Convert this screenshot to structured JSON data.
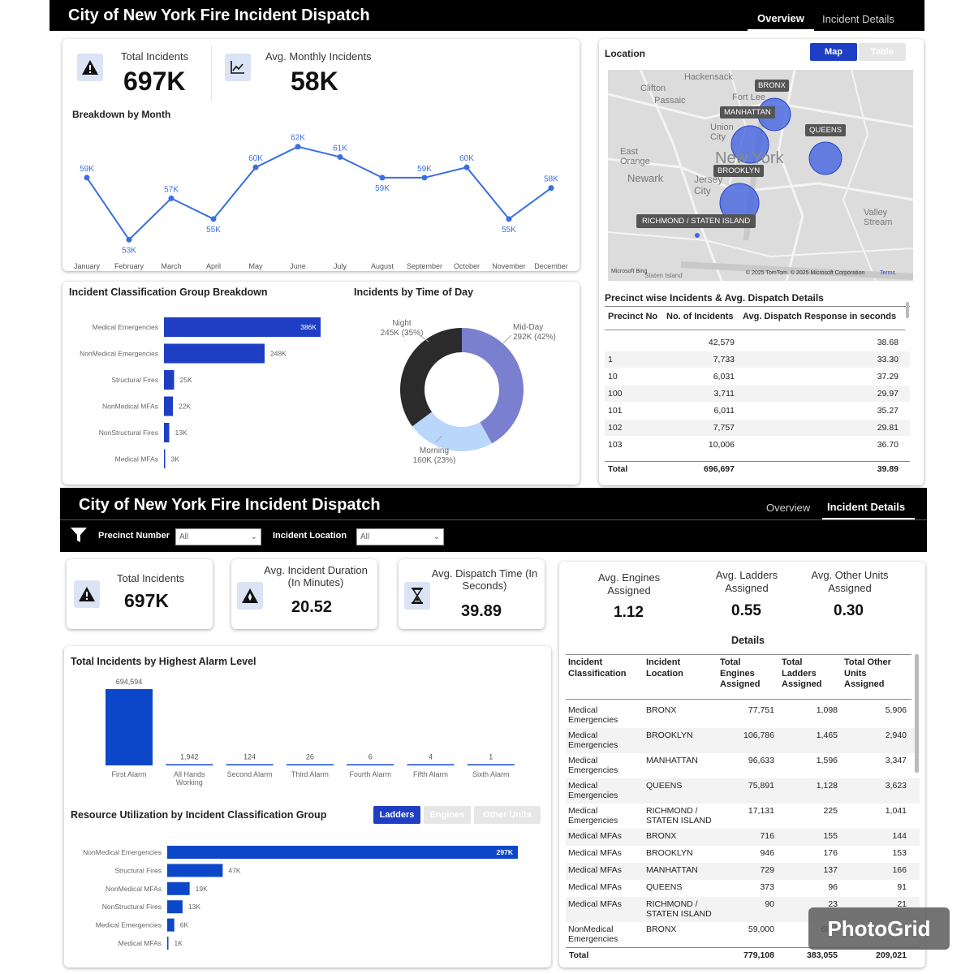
{
  "top": {
    "title": "City of New York Fire Incident Dispatch",
    "tabs": [
      "Overview",
      "Incident Details"
    ],
    "kpis": [
      {
        "label": "Total Incidents",
        "value": "697K",
        "icon": "warning-icon"
      },
      {
        "label": "Avg. Monthly Incidents",
        "value": "58K",
        "icon": "trend-chart-icon"
      }
    ],
    "month_title": "Breakdown by Month",
    "class_title": "Incident Classification Group Breakdown",
    "tod_title": "Incidents by Time of Day",
    "location": {
      "title": "Location",
      "buttons": [
        "Map",
        "Table"
      ],
      "map_labels": [
        "BRONX",
        "MANHATTAN",
        "QUEENS",
        "BROOKLYN",
        "RICHMOND / STATEN ISLAND"
      ],
      "place_names": [
        "Hackensack",
        "Clifton",
        "Passaic",
        "Fort Lee",
        "Union City",
        "East Orange",
        "Newark",
        "New York",
        "Jersey City",
        "Valley Stream",
        "Staten Island"
      ],
      "copyright": "© 2025 TomTom, © 2025 Microsoft Corporation",
      "terms": "Terms",
      "bing": "Microsoft Bing"
    },
    "precinct": {
      "title": "Precinct wise Incidents & Avg. Dispatch Details",
      "headers": [
        "Precinct No",
        "No. of Incidents",
        "Avg. Dispatch Response in seconds"
      ],
      "rows": [
        [
          "",
          "42,579",
          "38.68"
        ],
        [
          "1",
          "7,733",
          "33.30"
        ],
        [
          "10",
          "6,031",
          "37.29"
        ],
        [
          "100",
          "3,711",
          "29.97"
        ],
        [
          "101",
          "6,011",
          "35.27"
        ],
        [
          "102",
          "7,757",
          "29.81"
        ],
        [
          "103",
          "10,006",
          "36.70"
        ]
      ],
      "total": [
        "Total",
        "696,697",
        "39.89"
      ]
    }
  },
  "bottom": {
    "title": "City of New York Fire Incident Dispatch",
    "tabs": [
      "Overview",
      "Incident Details"
    ],
    "filters": [
      {
        "label": "Precinct Number",
        "value": "All"
      },
      {
        "label": "Incident Location",
        "value": "All"
      }
    ],
    "kpis": [
      {
        "label": "Total Incidents",
        "value": "697K",
        "icon": "warning-icon"
      },
      {
        "label": "Avg. Incident Duration (In Minutes)",
        "value": "20.52",
        "icon": "fire-warning-icon"
      },
      {
        "label": "Avg. Dispatch Time (In Seconds)",
        "value": "39.89",
        "icon": "hourglass-icon"
      }
    ],
    "units": [
      {
        "label": "Avg. Engines Assigned",
        "value": "1.12"
      },
      {
        "label": "Avg. Ladders Assigned",
        "value": "0.55"
      },
      {
        "label": "Avg. Other Units Assigned",
        "value": "0.30"
      }
    ],
    "details": {
      "title": "Details",
      "headers": [
        "Incident Classification",
        "Incident Location",
        "Total Engines Assigned",
        "Total Ladders Assigned",
        "Total Other Units Assigned"
      ],
      "rows": [
        [
          "Medical Emergencies",
          "BRONX",
          "77,751",
          "1,098",
          "5,906"
        ],
        [
          "Medical Emergencies",
          "BROOKLYN",
          "106,786",
          "1,465",
          "2,940"
        ],
        [
          "Medical Emergencies",
          "MANHATTAN",
          "96,633",
          "1,596",
          "3,347"
        ],
        [
          "Medical Emergencies",
          "QUEENS",
          "75,891",
          "1,128",
          "3,623"
        ],
        [
          "Medical Emergencies",
          "RICHMOND / STATEN ISLAND",
          "17,131",
          "225",
          "1,041"
        ],
        [
          "Medical MFAs",
          "BRONX",
          "716",
          "155",
          "144"
        ],
        [
          "Medical MFAs",
          "BROOKLYN",
          "946",
          "176",
          "153"
        ],
        [
          "Medical MFAs",
          "MANHATTAN",
          "729",
          "137",
          "166"
        ],
        [
          "Medical MFAs",
          "QUEENS",
          "373",
          "96",
          "91"
        ],
        [
          "Medical MFAs",
          "RICHMOND / STATEN ISLAND",
          "90",
          "23",
          "21"
        ],
        [
          "NonMedical Emergencies",
          "BRONX",
          "59,000",
          "68,4",
          ""
        ]
      ],
      "total": [
        "Total",
        "",
        "779,108",
        "383,055",
        "209,021"
      ]
    },
    "alarm_title": "Total Incidents by Highest Alarm Level",
    "resource_title": "Resource Utilization by Incident Classification Group",
    "resource_buttons": [
      "Ladders",
      "Engines",
      "Other Units"
    ]
  },
  "watermark": "PhotoGrid",
  "chart_data": [
    {
      "type": "line",
      "title": "Breakdown by Month",
      "categories": [
        "January",
        "February",
        "March",
        "April",
        "May",
        "June",
        "July",
        "August",
        "September",
        "October",
        "November",
        "December"
      ],
      "values": [
        59,
        53,
        57,
        55,
        60,
        62,
        61,
        59,
        59,
        60,
        55,
        58
      ],
      "labels": [
        "59K",
        "53K",
        "57K",
        "55K",
        "60K",
        "62K",
        "61K",
        "59K",
        "59K",
        "60K",
        "55K",
        "58K"
      ],
      "color": "#3b6fe0"
    },
    {
      "type": "bar",
      "orientation": "horizontal",
      "title": "Incident Classification Group Breakdown",
      "categories": [
        "Medical Emergencies",
        "NonMedical Emergencies",
        "Structural Fires",
        "NonMedical MFAs",
        "NonStructural Fires",
        "Medical MFAs"
      ],
      "values": [
        386,
        248,
        25,
        22,
        13,
        3
      ],
      "labels": [
        "386K",
        "248K",
        "25K",
        "22K",
        "13K",
        "3K"
      ],
      "color": "#1e3fc3"
    },
    {
      "type": "pie",
      "title": "Incidents by Time of Day",
      "donut": true,
      "slices": [
        {
          "name": "Mid-Day",
          "value": 292,
          "label": "292K (42%)",
          "color": "#7b7fd0"
        },
        {
          "name": "Morning",
          "value": 160,
          "label": "160K (23%)",
          "color": "#b9d7fa"
        },
        {
          "name": "Night",
          "value": 245,
          "label": "245K (35%)",
          "color": "#2b2b2b"
        }
      ]
    },
    {
      "type": "bar",
      "title": "Total Incidents by Highest Alarm Level",
      "categories": [
        "First Alarm",
        "All Hands Working",
        "Second Alarm",
        "Third Alarm",
        "Fourth Alarm",
        "Fifth Alarm",
        "Sixth Alarm"
      ],
      "values": [
        694594,
        1942,
        124,
        26,
        6,
        4,
        1
      ],
      "labels": [
        "694,594",
        "1,942",
        "124",
        "26",
        "6",
        "4",
        "1"
      ],
      "color": "#0d47c9"
    },
    {
      "type": "bar",
      "orientation": "horizontal",
      "title": "Resource Utilization by Incident Classification Group",
      "categories": [
        "NonMedical Emergencies",
        "Structural Fires",
        "NonMedical MFAs",
        "NonStructural Fires",
        "Medical Emergencies",
        "Medical MFAs"
      ],
      "values": [
        297,
        47,
        19,
        13,
        6,
        1
      ],
      "labels": [
        "297K",
        "47K",
        "19K",
        "13K",
        "6K",
        "1K"
      ],
      "color": "#0d47c9"
    }
  ]
}
